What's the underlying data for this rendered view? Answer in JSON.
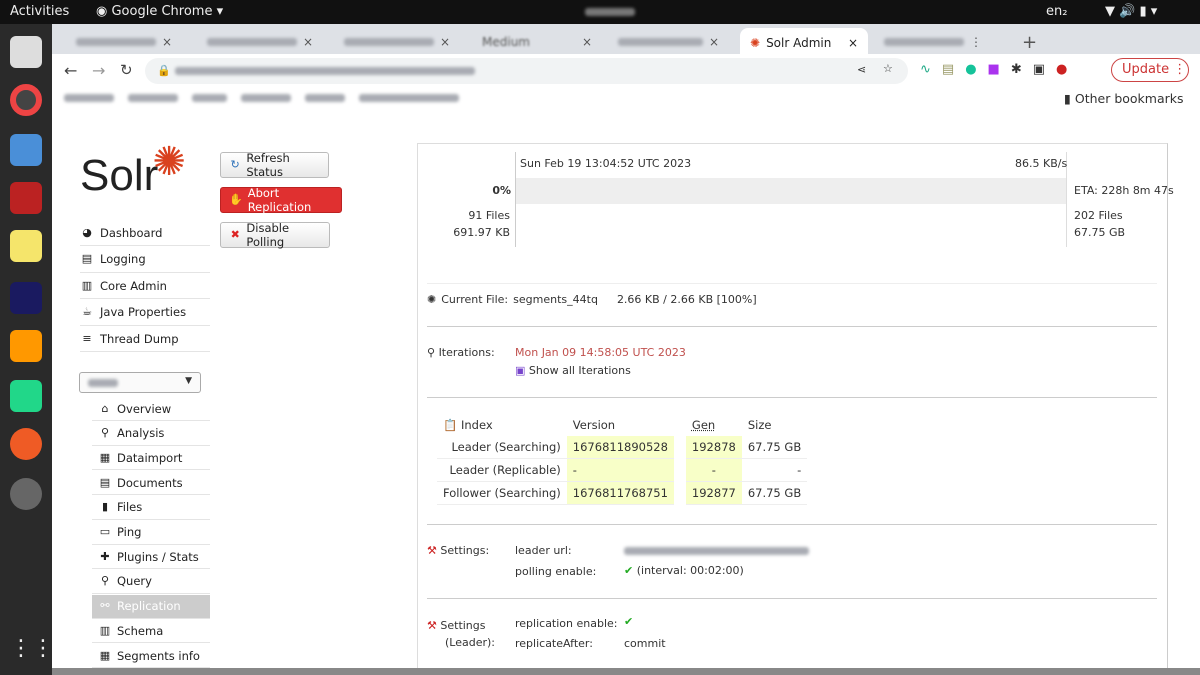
{
  "os": {
    "activities": "Activities",
    "app": "Google Chrome",
    "lang": "en₂"
  },
  "browser": {
    "active_tab": "Solr Admin",
    "other_visible_tab": "Medium",
    "update": "Update",
    "other_bookmarks": "Other bookmarks"
  },
  "solr": {
    "logo": "Solr",
    "nav": [
      "Dashboard",
      "Logging",
      "Core Admin",
      "Java Properties",
      "Thread Dump"
    ],
    "core_menu": [
      "Overview",
      "Analysis",
      "Dataimport",
      "Documents",
      "Files",
      "Ping",
      "Plugins / Stats",
      "Query",
      "Replication",
      "Schema",
      "Segments info"
    ],
    "active_core_item": "Replication",
    "buttons": {
      "refresh": "Refresh Status",
      "abort": "Abort Replication",
      "disable": "Disable Polling"
    },
    "progress": {
      "timestamp": "Sun Feb 19 13:04:52 UTC 2023",
      "speed": "86.5 KB/s",
      "percent_label": "0%",
      "percent": 0,
      "eta": "ETA: 228h 8m 47s",
      "done_files": "91 Files",
      "done_size": "691.97 KB",
      "total_files": "202 Files",
      "total_size": "67.75 GB"
    },
    "current_file": {
      "label": "Current File:",
      "name": "segments_44tq",
      "progress": "2.66 KB / 2.66 KB [100%]"
    },
    "iterations": {
      "label": "Iterations:",
      "date": "Mon Jan 09 14:58:05 UTC 2023",
      "show_all": "Show all Iterations"
    },
    "index": {
      "headers": [
        "Index",
        "Version",
        "Gen",
        "Size"
      ],
      "rows": [
        [
          "Leader (Searching)",
          "1676811890528",
          "192878",
          "67.75 GB"
        ],
        [
          "Leader (Replicable)",
          "-",
          "-",
          "-"
        ],
        [
          "Follower (Searching)",
          "1676811768751",
          "192877",
          "67.75 GB"
        ]
      ]
    },
    "settings": {
      "label": "Settings:",
      "leader_url_label": "leader url:",
      "polling_label": "polling enable:",
      "polling_value": "(interval: 00:02:00)"
    },
    "leader_settings": {
      "label1": "Settings",
      "label2": "(Leader):",
      "replication_label": "replication enable:",
      "replicate_after_label": "replicateAfter:",
      "replicate_after_value": "commit"
    },
    "colors": {
      "accent": "#d9411e",
      "abort": "#e03030",
      "highlight": "#f8ffc8",
      "iteration": "#c0504d"
    }
  }
}
